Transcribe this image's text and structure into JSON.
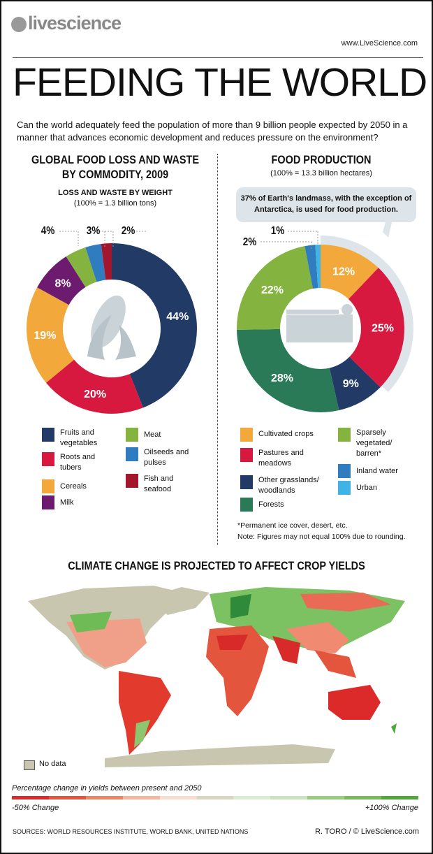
{
  "header": {
    "logo": "livescience",
    "url": "www.LiveScience.com",
    "title": "FEEDING THE WORLD",
    "intro": "Can the world adequately feed the population of more than 9 billion people expected by 2050 in a manner that advances economic development and reduces pressure on the environment?"
  },
  "chart_data": [
    {
      "type": "pie",
      "title": "GLOBAL FOOD LOSS AND WASTE BY COMMODITY, 2009",
      "subtitle": "LOSS AND WASTE BY WEIGHT",
      "note": "(100% = 1.3 billion tons)",
      "categories": [
        "Fruits and vegetables",
        "Roots and tubers",
        "Cereals",
        "Milk",
        "Meat",
        "Oilseeds and pulses",
        "Fish and seafood"
      ],
      "values": [
        44,
        20,
        19,
        8,
        4,
        3,
        2
      ],
      "labels": [
        "44%",
        "20%",
        "19%",
        "8%",
        "4%",
        "3%",
        "2%"
      ],
      "colors": [
        "#213a66",
        "#d8193f",
        "#f2a83a",
        "#6d1b6f",
        "#84b33f",
        "#2f7cbf",
        "#a3172e"
      ]
    },
    {
      "type": "pie",
      "title": "FOOD PRODUCTION",
      "note": "(100% = 13.3 billion hectares)",
      "categories": [
        "Cultivated crops",
        "Pastures and meadows",
        "Other grasslands/ woodlands",
        "Forests",
        "Sparsely vegetated/ barren*",
        "Inland water",
        "Urban"
      ],
      "values": [
        12,
        25,
        9,
        28,
        22,
        2,
        1
      ],
      "labels": [
        "12%",
        "25%",
        "9%",
        "28%",
        "22%",
        "2%",
        "1%"
      ],
      "colors": [
        "#f2a83a",
        "#d8193f",
        "#213a66",
        "#2a7a57",
        "#84b33f",
        "#2f7cbf",
        "#3fb2e6"
      ],
      "callout": "37% of Earth's landmass, with the exception of Antarctica, is used for food production.",
      "footnote": "*Permanent ice cover, desert, etc.",
      "rounding_note": "Note: Figures may not equal 100% due to rounding."
    }
  ],
  "map": {
    "title": "CLIMATE CHANGE IS PROJECTED TO AFFECT CROP YIELDS",
    "no_data": "No data",
    "no_data_color": "#c9c6b0",
    "scale_label": "Percentage change in yields between present and 2050",
    "min_label": "-50% Change",
    "max_label": "+100% Change",
    "scale_colors": [
      "#dc2a2a",
      "#e4553d",
      "#ee8466",
      "#f5b59e",
      "#fadcd0",
      "#d9d6c0",
      "#dbecd2",
      "#c8e3bd",
      "#98cc7f",
      "#77bb5e",
      "#4fa83a"
    ]
  },
  "footer": {
    "sources": "SOURCES: WORLD RESOURCES INSTITUTE, WORLD BANK, UNITED NATIONS",
    "credit": "R. TORO / © LiveScience.com"
  }
}
